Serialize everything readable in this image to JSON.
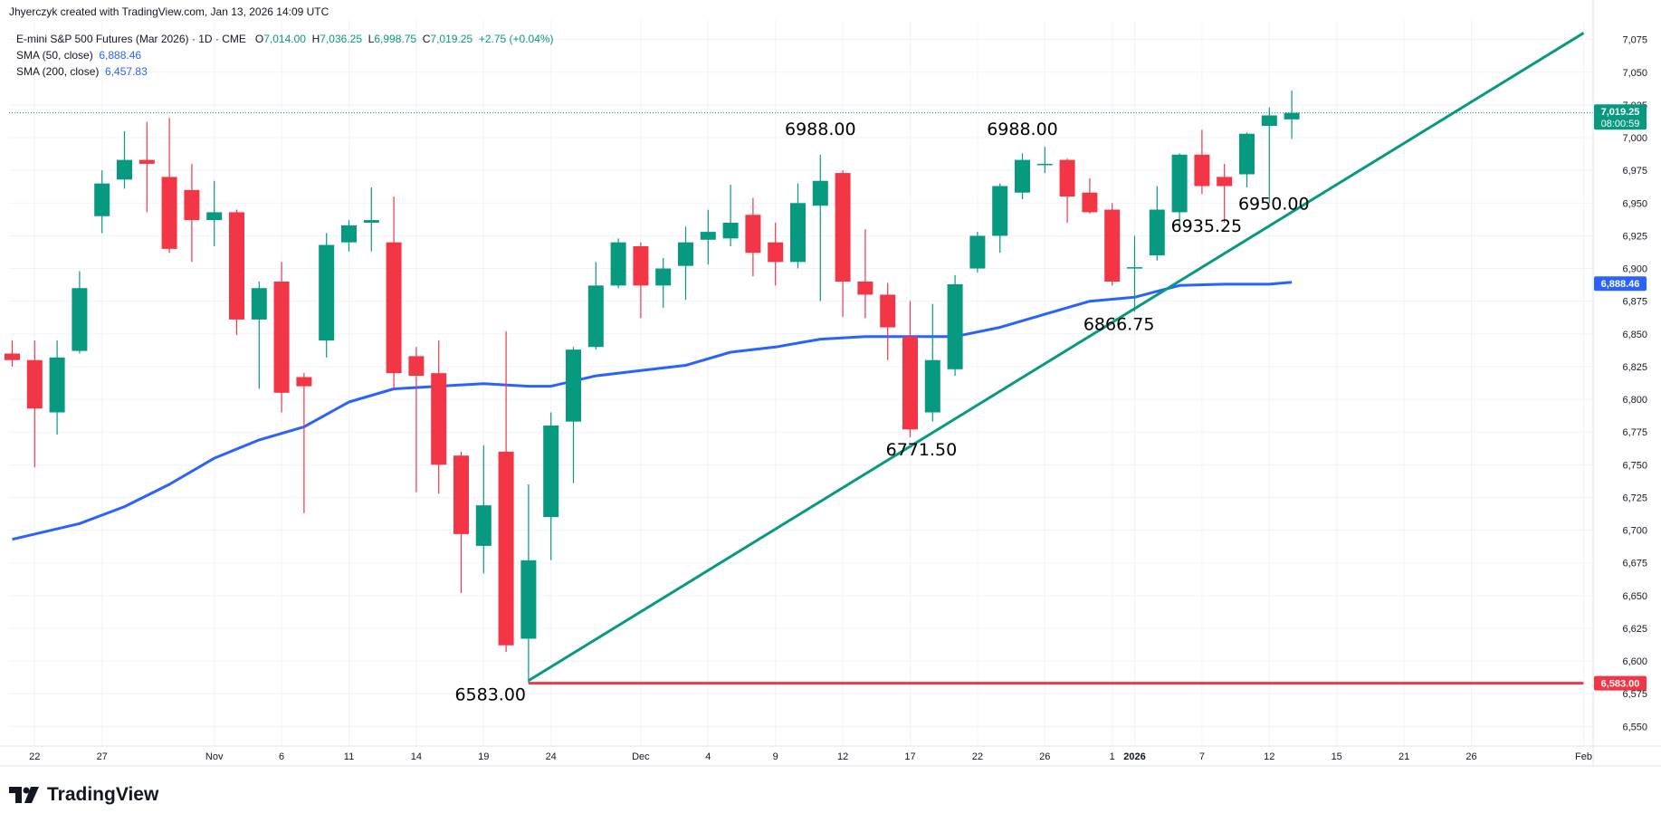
{
  "header": {
    "note": "Jhyerczyk created with TradingView.com, Jan 13, 2026 14:09 UTC"
  },
  "legend": {
    "symbol": "E-mini S&P 500 Futures (Mar 2026) · 1D · CME",
    "open_label": "O",
    "open": "7,014.00",
    "high_label": "H",
    "high": "7,036.25",
    "low_label": "L",
    "low": "6,998.75",
    "close_label": "C",
    "close": "7,019.25",
    "change": "+2.75 (+0.04%)",
    "sma50_label": "SMA (50, close)",
    "sma50_value": "6,888.46",
    "sma200_label": "SMA (200, close)",
    "sma200_value": "6,457.83"
  },
  "branding": {
    "text": "TradingView"
  },
  "colors": {
    "up": "#089981",
    "down": "#f23645",
    "sma": "#2962ff",
    "trendline": "#089981",
    "support": "#f23645",
    "grid": "#f0f3fa",
    "axis_text": "#131722"
  },
  "chart_data": {
    "type": "candlestick",
    "ylim": [
      6535,
      7090
    ],
    "y_ticks": [
      6550,
      6575,
      6600,
      6625,
      6650,
      6675,
      6700,
      6725,
      6750,
      6775,
      6800,
      6825,
      6850,
      6875,
      6900,
      6925,
      6950,
      6975,
      7000,
      7025,
      7050,
      7075
    ],
    "x_ticks": [
      {
        "label": "22",
        "i": 1
      },
      {
        "label": "27",
        "i": 4
      },
      {
        "label": "Nov",
        "i": 9
      },
      {
        "label": "6",
        "i": 12
      },
      {
        "label": "11",
        "i": 15
      },
      {
        "label": "14",
        "i": 18
      },
      {
        "label": "19",
        "i": 21
      },
      {
        "label": "24",
        "i": 24
      },
      {
        "label": "Dec",
        "i": 28
      },
      {
        "label": "4",
        "i": 31
      },
      {
        "label": "9",
        "i": 34
      },
      {
        "label": "12",
        "i": 37
      },
      {
        "label": "17",
        "i": 40
      },
      {
        "label": "22",
        "i": 43
      },
      {
        "label": "26",
        "i": 46
      },
      {
        "label": "1",
        "i": 49
      },
      {
        "label": "2026",
        "i": 50,
        "bold": true
      },
      {
        "label": "7",
        "i": 53
      },
      {
        "label": "12",
        "i": 56
      },
      {
        "label": "15",
        "i": 59
      },
      {
        "label": "21",
        "i": 62
      },
      {
        "label": "26",
        "i": 65
      },
      {
        "label": "Feb",
        "i": 70
      }
    ],
    "candles": [
      {
        "o": 6835,
        "h": 6845,
        "l": 6825,
        "c": 6830
      },
      {
        "o": 6830,
        "h": 6845,
        "l": 6748,
        "c": 6793
      },
      {
        "o": 6790,
        "h": 6845,
        "l": 6773,
        "c": 6832
      },
      {
        "o": 6837,
        "h": 6898,
        "l": 6835,
        "c": 6885
      },
      {
        "o": 6940,
        "h": 6975,
        "l": 6927,
        "c": 6965
      },
      {
        "o": 6968,
        "h": 7005,
        "l": 6961,
        "c": 6983
      },
      {
        "o": 6983,
        "h": 7012,
        "l": 6943,
        "c": 6980
      },
      {
        "o": 6970,
        "h": 7015,
        "l": 6912,
        "c": 6915
      },
      {
        "o": 6960,
        "h": 6980,
        "l": 6905,
        "c": 6937
      },
      {
        "o": 6937,
        "h": 6967,
        "l": 6917,
        "c": 6943
      },
      {
        "o": 6943,
        "h": 6945,
        "l": 6849,
        "c": 6861
      },
      {
        "o": 6861,
        "h": 6890,
        "l": 6808,
        "c": 6885
      },
      {
        "o": 6890,
        "h": 6905,
        "l": 6790,
        "c": 6805
      },
      {
        "o": 6817,
        "h": 6820,
        "l": 6713,
        "c": 6810
      },
      {
        "o": 6845,
        "h": 6927,
        "l": 6832,
        "c": 6918
      },
      {
        "o": 6920,
        "h": 6937,
        "l": 6913,
        "c": 6933
      },
      {
        "o": 6935,
        "h": 6962,
        "l": 6913,
        "c": 6937
      },
      {
        "o": 6920,
        "h": 6955,
        "l": 6808,
        "c": 6820
      },
      {
        "o": 6833,
        "h": 6840,
        "l": 6729,
        "c": 6818
      },
      {
        "o": 6820,
        "h": 6845,
        "l": 6728,
        "c": 6750
      },
      {
        "o": 6757,
        "h": 6760,
        "l": 6652,
        "c": 6697
      },
      {
        "o": 6688,
        "h": 6765,
        "l": 6667,
        "c": 6719
      },
      {
        "o": 6760,
        "h": 6852,
        "l": 6607,
        "c": 6612
      },
      {
        "o": 6617,
        "h": 6735,
        "l": 6583,
        "c": 6677
      },
      {
        "o": 6710,
        "h": 6790,
        "l": 6677,
        "c": 6780
      },
      {
        "o": 6783,
        "h": 6840,
        "l": 6736,
        "c": 6838
      },
      {
        "o": 6840,
        "h": 6905,
        "l": 6838,
        "c": 6887
      },
      {
        "o": 6887,
        "h": 6923,
        "l": 6885,
        "c": 6920
      },
      {
        "o": 6917,
        "h": 6920,
        "l": 6862,
        "c": 6887
      },
      {
        "o": 6887,
        "h": 6908,
        "l": 6870,
        "c": 6900
      },
      {
        "o": 6902,
        "h": 6932,
        "l": 6876,
        "c": 6920
      },
      {
        "o": 6922,
        "h": 6945,
        "l": 6903,
        "c": 6928
      },
      {
        "o": 6923,
        "h": 6964,
        "l": 6917,
        "c": 6935
      },
      {
        "o": 6941,
        "h": 6954,
        "l": 6894,
        "c": 6912
      },
      {
        "o": 6920,
        "h": 6935,
        "l": 6887,
        "c": 6905
      },
      {
        "o": 6905,
        "h": 6965,
        "l": 6900,
        "c": 6950
      },
      {
        "o": 6948,
        "h": 6987,
        "l": 6875,
        "c": 6967
      },
      {
        "o": 6973,
        "h": 6975,
        "l": 6863,
        "c": 6890
      },
      {
        "o": 6890,
        "h": 6930,
        "l": 6862,
        "c": 6880
      },
      {
        "o": 6880,
        "h": 6889,
        "l": 6830,
        "c": 6855
      },
      {
        "o": 6848,
        "h": 6875,
        "l": 6771,
        "c": 6777
      },
      {
        "o": 6790,
        "h": 6873,
        "l": 6783,
        "c": 6830
      },
      {
        "o": 6823,
        "h": 6895,
        "l": 6818,
        "c": 6888
      },
      {
        "o": 6900,
        "h": 6928,
        "l": 6897,
        "c": 6925
      },
      {
        "o": 6925,
        "h": 6965,
        "l": 6912,
        "c": 6963
      },
      {
        "o": 6958,
        "h": 6988,
        "l": 6953,
        "c": 6983
      },
      {
        "o": 6980,
        "h": 6993,
        "l": 6973,
        "c": 6980
      },
      {
        "o": 6983,
        "h": 6984,
        "l": 6935,
        "c": 6955
      },
      {
        "o": 6958,
        "h": 6969,
        "l": 6942,
        "c": 6943
      },
      {
        "o": 6945,
        "h": 6950,
        "l": 6887,
        "c": 6890
      },
      {
        "o": 6900,
        "h": 6925,
        "l": 6867,
        "c": 6901
      },
      {
        "o": 6910,
        "h": 6963,
        "l": 6906,
        "c": 6945
      },
      {
        "o": 6943,
        "h": 6988,
        "l": 6933,
        "c": 6987
      },
      {
        "o": 6987,
        "h": 7006,
        "l": 6957,
        "c": 6963
      },
      {
        "o": 6970,
        "h": 6980,
        "l": 6935,
        "c": 6963
      },
      {
        "o": 6972,
        "h": 7004,
        "l": 6962,
        "c": 7003
      },
      {
        "o": 7009,
        "h": 7023,
        "l": 6950,
        "c": 7017
      },
      {
        "o": 7014,
        "h": 7036,
        "l": 6999,
        "c": 7019
      }
    ],
    "sma50": [
      [
        0,
        6693
      ],
      [
        3,
        6705
      ],
      [
        5,
        6718
      ],
      [
        7,
        6735
      ],
      [
        9,
        6755
      ],
      [
        11,
        6769
      ],
      [
        13,
        6779
      ],
      [
        15,
        6798
      ],
      [
        17,
        6808
      ],
      [
        19,
        6810
      ],
      [
        21,
        6812
      ],
      [
        23,
        6810
      ],
      [
        24,
        6810
      ],
      [
        26,
        6818
      ],
      [
        28,
        6822
      ],
      [
        30,
        6826
      ],
      [
        32,
        6836
      ],
      [
        34,
        6840
      ],
      [
        36,
        6846
      ],
      [
        38,
        6848
      ],
      [
        40,
        6848
      ],
      [
        42,
        6848
      ],
      [
        44,
        6855
      ],
      [
        46,
        6865
      ],
      [
        48,
        6875
      ],
      [
        50,
        6878
      ],
      [
        52,
        6887
      ],
      [
        54,
        6888
      ],
      [
        56,
        6888
      ],
      [
        57,
        6889.5
      ]
    ],
    "trendline": {
      "from": [
        23,
        6585
      ],
      "to": [
        70,
        7080
      ]
    },
    "support": {
      "y": 6583,
      "from": 23,
      "to": 70
    },
    "annotations": [
      {
        "text": "6988.00",
        "i": 36,
        "y": 7002
      },
      {
        "text": "6988.00",
        "i": 45,
        "y": 7002
      },
      {
        "text": "6950.00",
        "i": 56.2,
        "y": 6945
      },
      {
        "text": "6935.25",
        "i": 53.2,
        "y": 6928
      },
      {
        "text": "6866.75",
        "i": 49.3,
        "y": 6853
      },
      {
        "text": "6771.50",
        "i": 40.5,
        "y": 6757
      },
      {
        "text": "6583.00",
        "i": 21.3,
        "y": 6570
      }
    ],
    "price_labels": [
      {
        "text": "7,019.25",
        "sub": "08:00:59",
        "y": 7019.25,
        "color": "#089981"
      },
      {
        "text": "6,888.46",
        "y": 6888.46,
        "color": "#2962ff"
      },
      {
        "text": "6,583.00",
        "y": 6583,
        "color": "#f23645"
      }
    ]
  }
}
